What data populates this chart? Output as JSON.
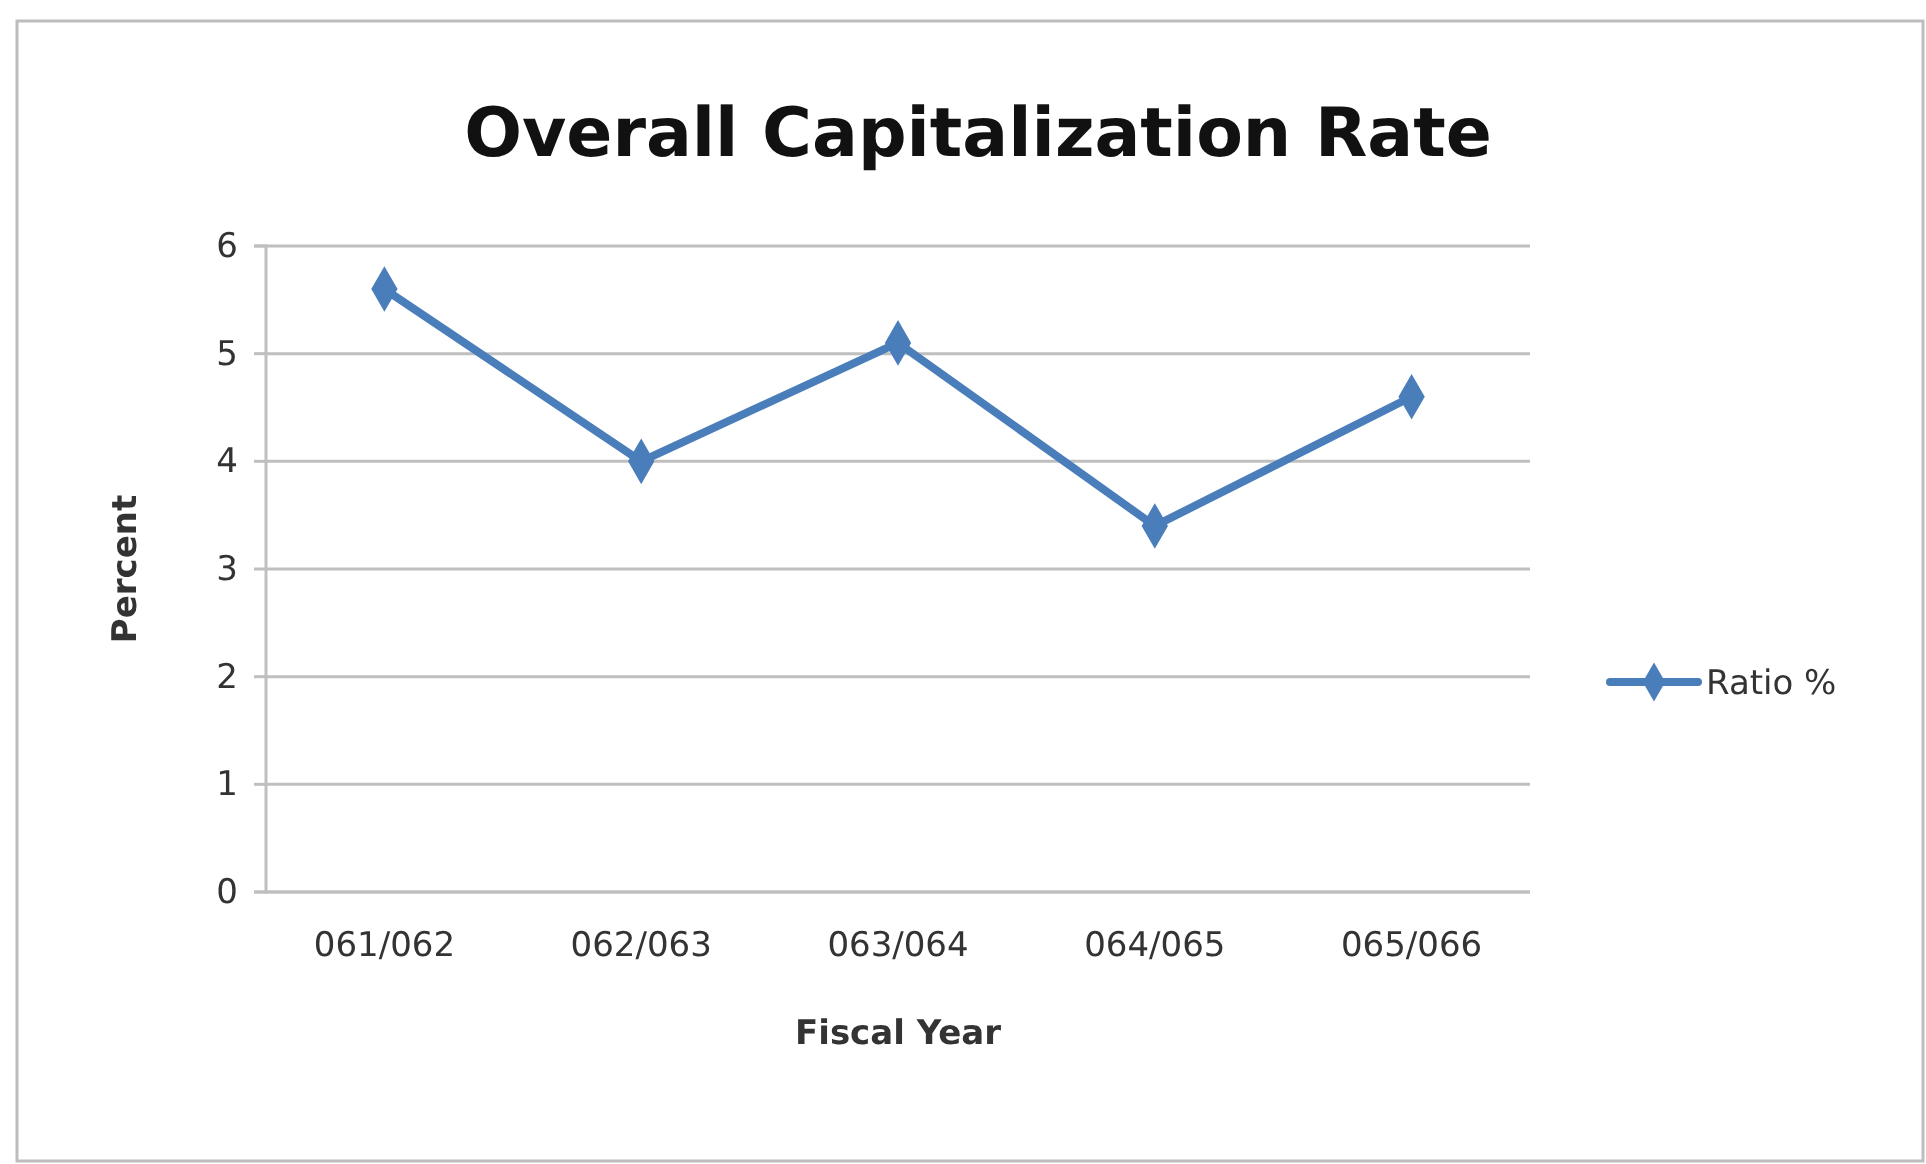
{
  "chart_data": {
    "type": "line",
    "title": "Overall Capitalization Rate",
    "xlabel": "Fiscal Year",
    "ylabel": "Percent",
    "categories": [
      "061/062",
      "062/063",
      "063/064",
      "064/065",
      "065/066"
    ],
    "series": [
      {
        "name": "Ratio %",
        "color": "#4a7ebb",
        "values": [
          5.6,
          4.0,
          5.1,
          3.4,
          4.6
        ]
      }
    ],
    "ylim": [
      0,
      6
    ],
    "yticks": [
      0,
      1,
      2,
      3,
      4,
      5,
      6
    ],
    "grid": "y",
    "legend": "right",
    "marker": "diamond",
    "line_style": "solid"
  }
}
